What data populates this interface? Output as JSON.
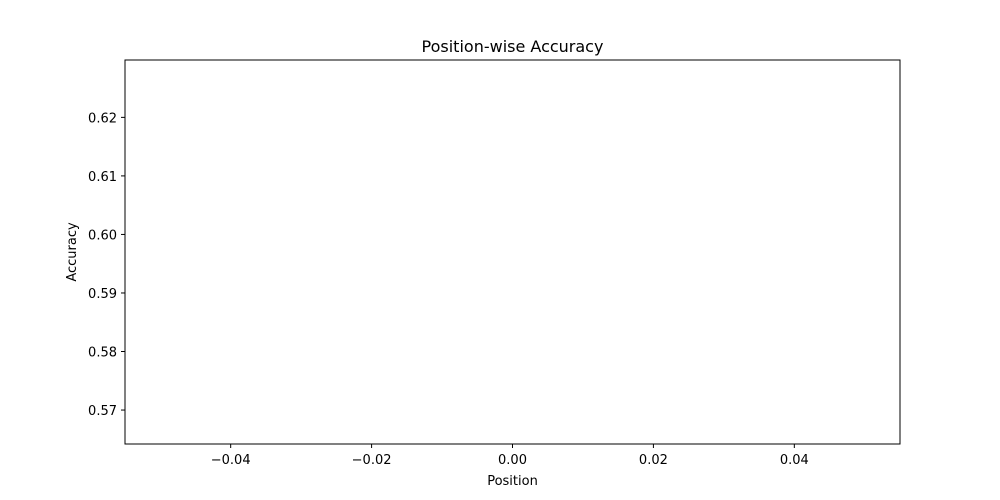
{
  "chart_data": {
    "type": "line",
    "title": "Position-wise Accuracy",
    "xlabel": "Position",
    "ylabel": "Accuracy",
    "xlim": [
      -0.055,
      0.055
    ],
    "ylim": [
      0.5642,
      0.6298
    ],
    "x_ticks": [
      -0.04,
      -0.02,
      0.0,
      0.02,
      0.04
    ],
    "x_tick_labels": [
      "−0.04",
      "−0.02",
      "0.00",
      "0.02",
      "0.04"
    ],
    "y_ticks": [
      0.57,
      0.58,
      0.59,
      0.6,
      0.61,
      0.62
    ],
    "y_tick_labels": [
      "0.57",
      "0.58",
      "0.59",
      "0.60",
      "0.61",
      "0.62"
    ],
    "series": [],
    "grid": false,
    "colors": {
      "axes": "#000000",
      "background": "#ffffff"
    }
  }
}
